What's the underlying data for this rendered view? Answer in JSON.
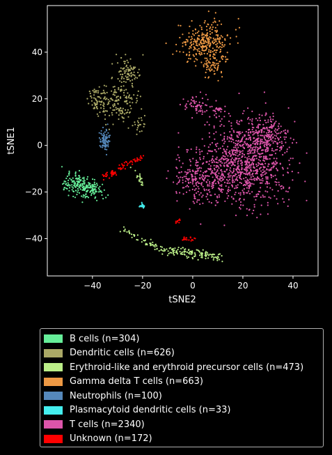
{
  "chart_data": {
    "type": "scatter",
    "xlabel": "tSNE2",
    "ylabel": "tSNE1",
    "xlim": [
      -58,
      50
    ],
    "ylim": [
      -56,
      60
    ],
    "xticks": [
      -40,
      -20,
      0,
      20,
      40
    ],
    "yticks": [
      -40,
      -20,
      0,
      20,
      40
    ],
    "grid": false,
    "legend_position": "below",
    "series": [
      {
        "name": "B cells (n=304)",
        "color": "#66ee99",
        "clusters": [
          {
            "cx": -47,
            "cy": -16,
            "sx": 3,
            "sy": 2.2,
            "n": 110
          },
          {
            "cx": -41,
            "cy": -19,
            "sx": 3,
            "sy": 2,
            "n": 110
          }
        ]
      },
      {
        "name": "Dendritic cells (n=626)",
        "color": "#aaa866",
        "clusters": [
          {
            "cx": -26,
            "cy": 32,
            "sx": 2.5,
            "sy": 3,
            "n": 90
          },
          {
            "cx": -30,
            "cy": 19,
            "sx": 3.5,
            "sy": 4.5,
            "n": 150
          },
          {
            "cx": -38,
            "cy": 19,
            "sx": 2.5,
            "sy": 2.5,
            "n": 60
          },
          {
            "cx": -21,
            "cy": 8,
            "sx": 1.2,
            "sy": 1.8,
            "n": 20
          }
        ]
      },
      {
        "name": "Erythroid-like and erythroid precursor cells (n=473)",
        "color": "#bbee88",
        "lines": [
          {
            "x0": -28,
            "y0": -36,
            "x1": -12,
            "y1": -45,
            "n": 50,
            "s": 0.8
          },
          {
            "x0": -12,
            "y0": -45,
            "x1": 11,
            "y1": -48,
            "n": 130,
            "s": 1.0
          },
          {
            "x0": -24,
            "y0": -9,
            "x1": -20,
            "y1": -17,
            "n": 20,
            "s": 0.6
          }
        ]
      },
      {
        "name": "Gamma delta T cells (n=663)",
        "color": "#ee9944",
        "clusters": [
          {
            "cx": 5,
            "cy": 44,
            "sx": 5,
            "sy": 4.5,
            "n": 280
          },
          {
            "cx": 9,
            "cy": 35,
            "sx": 2.5,
            "sy": 3,
            "n": 60
          }
        ]
      },
      {
        "name": "Neutrophils (n=100)",
        "color": "#5588bb",
        "clusters": [
          {
            "cx": -35,
            "cy": 2,
            "sx": 1,
            "sy": 2.4,
            "n": 80
          }
        ]
      },
      {
        "name": "Plasmacytoid dendritic cells (n=33)",
        "color": "#44eeee",
        "clusters": [
          {
            "cx": -20,
            "cy": -26,
            "sx": 0.6,
            "sy": 0.5,
            "n": 20
          }
        ]
      },
      {
        "name": "T cells (n=2340)",
        "color": "#dd55aa",
        "clusters": [
          {
            "cx": 22,
            "cy": -7,
            "sx": 8,
            "sy": 9,
            "n": 900
          },
          {
            "cx": 5,
            "cy": -13,
            "sx": 6,
            "sy": 6,
            "n": 300
          },
          {
            "cx": 30,
            "cy": 5,
            "sx": 4,
            "sy": 4,
            "n": 150
          },
          {
            "cx": 1,
            "cy": 17,
            "sx": 3,
            "sy": 2,
            "n": 60
          },
          {
            "cx": 10,
            "cy": 15,
            "sx": 1.3,
            "sy": 1.2,
            "n": 25
          }
        ]
      },
      {
        "name": "Unknown (n=172)",
        "color": "#ff0000",
        "lines": [
          {
            "x0": -36,
            "y0": -14,
            "x1": -20,
            "y1": -5,
            "n": 70,
            "s": 0.8
          },
          {
            "x0": -7,
            "y0": -33,
            "x1": -5,
            "y1": -32,
            "n": 10,
            "s": 0.4
          },
          {
            "x0": -4,
            "y0": -40,
            "x1": 1,
            "y1": -40,
            "n": 18,
            "s": 0.5
          }
        ]
      }
    ]
  }
}
